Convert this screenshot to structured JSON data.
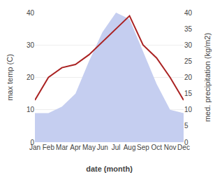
{
  "chart_data": {
    "type": "line",
    "categories": [
      "Jan",
      "Feb",
      "Mar",
      "Apr",
      "May",
      "Jun",
      "Jul",
      "Aug",
      "Sep",
      "Oct",
      "Nov",
      "Dec"
    ],
    "series": [
      {
        "type": "area",
        "color": "#c5cef0",
        "axis": "y2",
        "values": [
          9,
          9,
          11,
          15,
          25,
          34,
          40,
          38,
          28,
          18,
          10,
          9
        ]
      },
      {
        "type": "line",
        "color": "#aa2222",
        "values": [
          13,
          20,
          23,
          24,
          27,
          31,
          35,
          39,
          30,
          26,
          20,
          13
        ]
      }
    ],
    "xlabel": "date (month)",
    "ylabel": "max temp (C)",
    "y2label": "med. precipitation (kg/m2)",
    "ylim": [
      0,
      40
    ],
    "yticks": [
      0,
      10,
      20,
      30,
      40
    ],
    "y2lim": [
      0,
      40
    ],
    "y2ticks": [
      0,
      5,
      10,
      15,
      20,
      25,
      30,
      35,
      40
    ],
    "grid": true
  }
}
